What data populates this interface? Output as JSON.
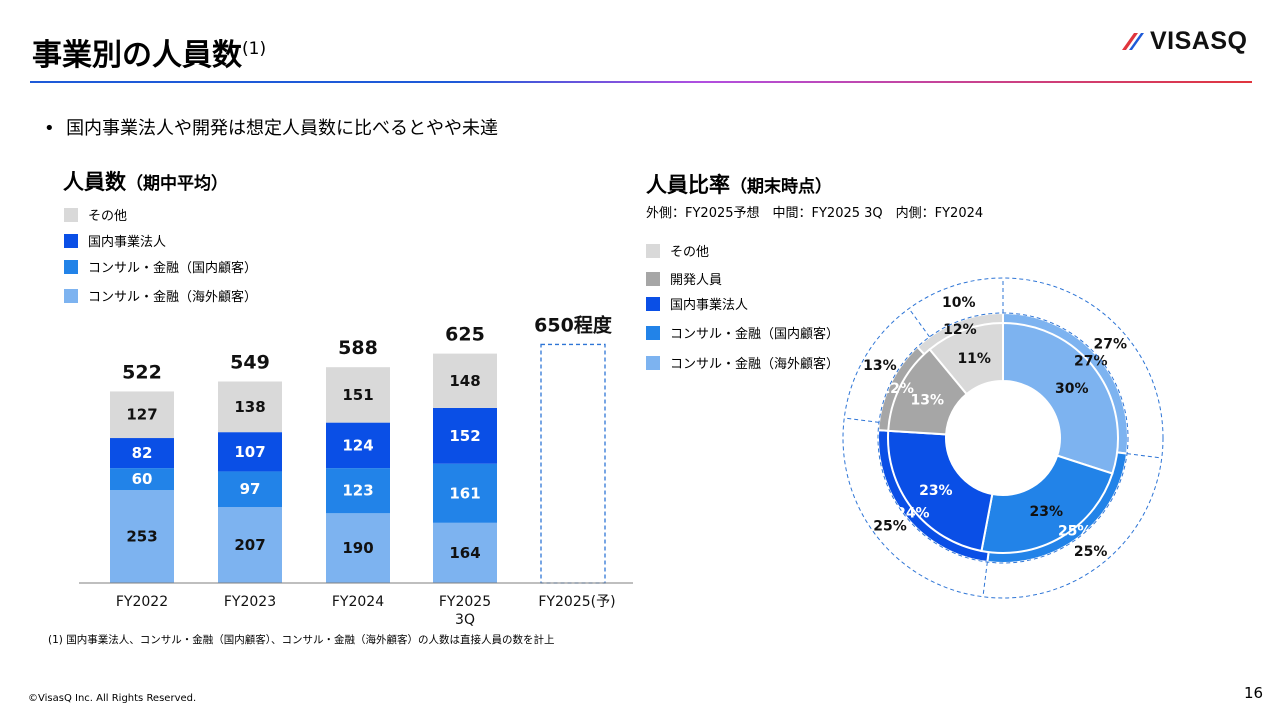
{
  "header": {
    "title": "事業別の人員数",
    "title_note": "(1)",
    "logo_text": "VISASQ",
    "logo_colors": [
      "#E0353D",
      "#1E5AD8"
    ]
  },
  "bullet": "国内事業法人や開発は想定人員数に比べるとやや未達",
  "left_section": {
    "title": "人員数",
    "title_suffix": "（期中平均）"
  },
  "right_section": {
    "title": "人員比率",
    "title_suffix": "（期末時点）",
    "subtitle": "外側：FY2025予想　中間：FY2025 3Q　内側：FY2024"
  },
  "footnote": "(1) 国内事業法人、コンサル・金融（国内顧客）、コンサル・金融（海外顧客）の人数は直接人員の数を計上",
  "copyright": "©VisasQ Inc. All Rights Reserved.",
  "page_number": "16",
  "chart_data": [
    {
      "type": "bar",
      "stacked": true,
      "title": "人員数（期中平均）",
      "categories": [
        "FY2022",
        "FY2023",
        "FY2024",
        "FY2025 3Q",
        "FY2025(予)"
      ],
      "category_lines": [
        [
          "FY2022"
        ],
        [
          "FY2023"
        ],
        [
          "FY2024"
        ],
        [
          "FY2025",
          "3Q"
        ],
        [
          "FY2025(予)"
        ]
      ],
      "series": [
        {
          "name": "コンサル・金融（海外顧客）",
          "color": "#7DB3F0",
          "values": [
            253,
            207,
            190,
            164,
            null
          ]
        },
        {
          "name": "コンサル・金融（国内顧客）",
          "color": "#2283E8",
          "values": [
            60,
            97,
            123,
            161,
            null
          ]
        },
        {
          "name": "国内事業法人",
          "color": "#0A4FE6",
          "values": [
            82,
            107,
            124,
            152,
            null
          ]
        },
        {
          "name": "その他",
          "color": "#D9D9D9",
          "values": [
            127,
            138,
            151,
            148,
            null
          ]
        }
      ],
      "totals": [
        "522",
        "549",
        "588",
        "625",
        "650程度"
      ],
      "forecast_placeholder": {
        "category": "FY2025(予)",
        "value": 650,
        "style": "dashed-outline",
        "color": "#2E75D6"
      },
      "legend": [
        "その他",
        "国内事業法人",
        "コンサル・金融（国内顧客）",
        "コンサル・金融（海外顧客）"
      ],
      "ylim": [
        0,
        680
      ]
    },
    {
      "type": "pie",
      "variant": "nested-donut",
      "title": "人員比率（期末時点）",
      "rings": [
        {
          "name": "FY2024",
          "position": "inner",
          "values": [
            30,
            23,
            23,
            13,
            11
          ],
          "labels": [
            "30%",
            "23%",
            "23%",
            "13%",
            "11%"
          ]
        },
        {
          "name": "FY2025 3Q",
          "position": "middle",
          "values": [
            27,
            25,
            24,
            12,
            12
          ],
          "labels": [
            "27%",
            "25%",
            "24%",
            "12%",
            "12%"
          ]
        },
        {
          "name": "FY2025予想",
          "position": "outer",
          "style": "dashed-outline",
          "values": [
            27,
            25,
            25,
            13,
            10
          ],
          "labels": [
            "27%",
            "25%",
            "25%",
            "13%",
            "10%"
          ]
        }
      ],
      "categories": [
        "コンサル・金融（海外顧客）",
        "コンサル・金融（国内顧客）",
        "国内事業法人",
        "開発人員",
        "その他"
      ],
      "colors": [
        "#7DB3F0",
        "#2283E8",
        "#0A4FE6",
        "#A6A6A6",
        "#D9D9D9"
      ],
      "legend": [
        {
          "label": "その他",
          "color": "#D9D9D9"
        },
        {
          "label": "開発人員",
          "color": "#A6A6A6"
        },
        {
          "label": "国内事業法人",
          "color": "#0A4FE6"
        },
        {
          "label": "コンサル・金融（国内顧客）",
          "color": "#2283E8"
        },
        {
          "label": "コンサル・金融（海外顧客）",
          "color": "#7DB3F0"
        }
      ]
    }
  ]
}
